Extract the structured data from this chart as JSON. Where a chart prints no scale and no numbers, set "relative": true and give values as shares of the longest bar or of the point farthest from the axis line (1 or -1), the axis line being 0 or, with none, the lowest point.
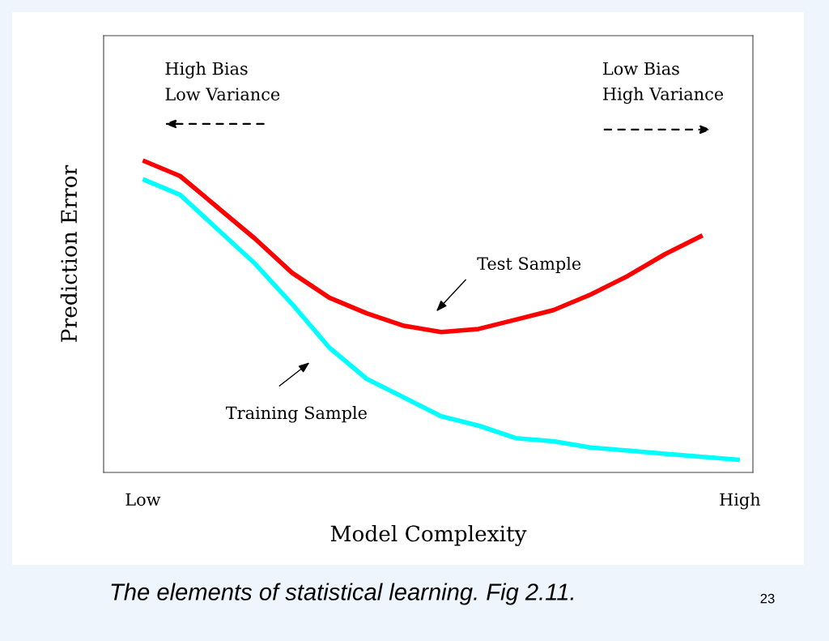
{
  "chart_data": {
    "type": "line",
    "relative": true,
    "xlabel": "Model Complexity",
    "ylabel": "Prediction Error",
    "categories": [
      "Low",
      null,
      null,
      null,
      null,
      null,
      null,
      null,
      null,
      null,
      null,
      null,
      null,
      null,
      null,
      null,
      "High"
    ],
    "series": [
      {
        "color": "#ff0000",
        "values": [
          1.0,
          0.95,
          0.85,
          0.75,
          0.64,
          0.56,
          0.51,
          0.47,
          0.45,
          0.46,
          0.49,
          0.52,
          0.57,
          0.63,
          0.7,
          0.76,
          null
        ]
      },
      {
        "color": "#00ffff",
        "values": [
          0.94,
          0.89,
          0.78,
          0.67,
          0.54,
          0.4,
          0.3,
          0.24,
          0.18,
          0.15,
          0.11,
          0.1,
          0.08,
          0.07,
          0.06,
          0.05,
          0.04
        ]
      }
    ],
    "annotations": [
      "High Bias\nLow Variance",
      "Low Bias\nHigh Variance",
      "Test Sample",
      "Training Sample",
      "The elements of statistical learning. Fig 2.11.",
      "23"
    ],
    "marker": "none",
    "line_style": "solid"
  }
}
